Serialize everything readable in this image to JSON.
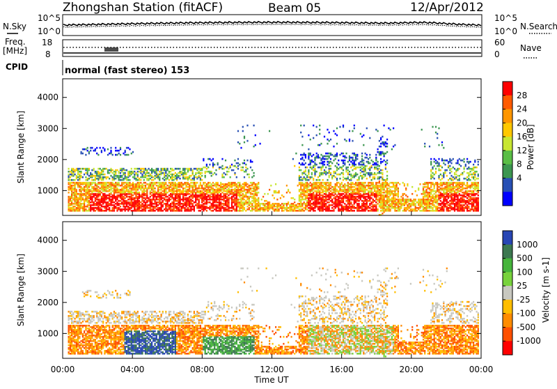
{
  "header": {
    "title": "Zhongshan Station (fitACF)",
    "beam": "Beam 05",
    "date": "12/Apr/2012"
  },
  "status_panel": {
    "left_label": "N.Sky",
    "left_top": "10^5",
    "left_bottom": "10^0",
    "right_top": "10^5",
    "right_bottom": "10^0",
    "right_label": "N.Search"
  },
  "freq_panel": {
    "left_label_1": "Freq.",
    "left_label_2": "[MHz]",
    "left_top": "18",
    "left_bottom": "8",
    "right_top": "60",
    "right_bottom": "0",
    "right_label": "Nave"
  },
  "cpid": {
    "label": "CPID",
    "text": "normal (fast stereo) 153"
  },
  "power_panel": {
    "ylabel": "Slant Range [km]",
    "colorbar_label": "Power [dB]",
    "colorbar_ticks": [
      "28",
      "24",
      "20",
      "16",
      "12",
      "8",
      "4"
    ],
    "colors": [
      "#ff0000",
      "#ff5a00",
      "#ff9600",
      "#ffc800",
      "#c8e632",
      "#5abe46",
      "#3c9650",
      "#2850b4",
      "#0000ff"
    ]
  },
  "velocity_panel": {
    "ylabel": "Slant Range [km]",
    "colorbar_label": "Velocity [m s-1]",
    "colorbar_ticks": [
      "1000",
      "500",
      "100",
      "25",
      "-25",
      "-100",
      "-500",
      "-1000"
    ],
    "colors": [
      "#2846b4",
      "#3c7850",
      "#46b43c",
      "#78d23c",
      "#c8c8c0",
      "#ffbe00",
      "#ff8c00",
      "#ff5000",
      "#ff0000"
    ]
  },
  "chart_data": {
    "type": "heatmap",
    "xlabel": "Time UT",
    "x_ticks": [
      "00:00",
      "04:00",
      "08:00",
      "12:00",
      "16:00",
      "20:00",
      "00:00"
    ],
    "xlim": [
      0,
      24
    ],
    "ylim": [
      200,
      4600
    ],
    "y_ticks": [
      "1000",
      "2000",
      "3000",
      "4000"
    ],
    "y_tick_values": [
      1000,
      2000,
      3000,
      4000
    ]
  }
}
